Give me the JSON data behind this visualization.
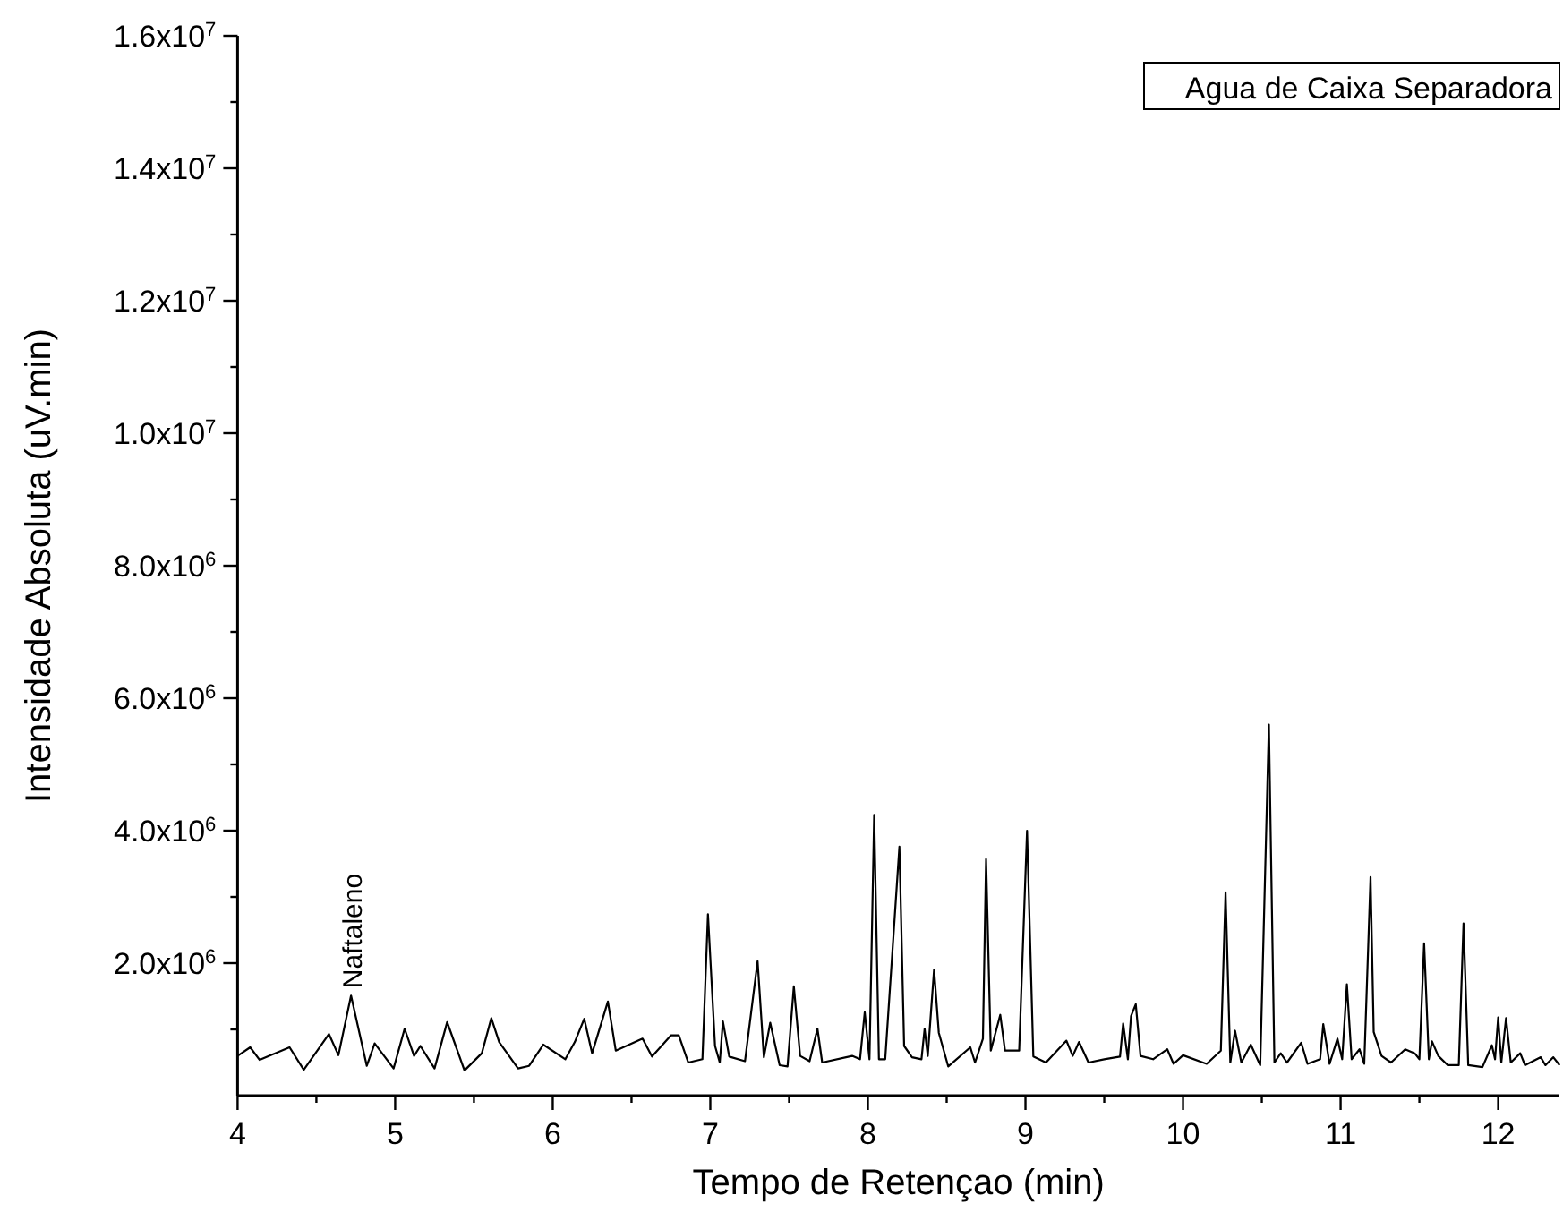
{
  "chart_data": {
    "type": "line",
    "xlabel": "Tempo de Retençao (min)",
    "ylabel": "Intensidade Absoluta (uV.min)",
    "xlim": [
      4,
      12.4
    ],
    "xticks": [
      4,
      {
        "value": 4.5,
        "label": null
      },
      5,
      {
        "value": 5.5,
        "label": null
      },
      6,
      {
        "value": 6.5,
        "label": null
      },
      7,
      {
        "value": 7.5,
        "label": null
      },
      8,
      {
        "value": 8.5,
        "label": null
      },
      9,
      {
        "value": 9.5,
        "label": null
      },
      10,
      {
        "value": 10.5,
        "label": null
      },
      11,
      {
        "value": 11.5,
        "label": null
      },
      12
    ],
    "ylim": [
      0,
      16000000
    ],
    "yticks": [
      {
        "value": 1000000,
        "label": null
      },
      {
        "value": 2000000,
        "label": "2.0x10$^{6}$"
      },
      {
        "value": 3000000,
        "label": null
      },
      {
        "value": 4000000,
        "label": "4.0x10$^{6}$"
      },
      {
        "value": 5000000,
        "label": null
      },
      {
        "value": 6000000,
        "label": "6.0x10$^{6}$"
      },
      {
        "value": 7000000,
        "label": null
      },
      {
        "value": 8000000,
        "label": "8.0x10$^{6}$"
      },
      {
        "value": 9000000,
        "label": null
      },
      {
        "value": 10000000,
        "label": "1.0x10$^{7}$"
      },
      {
        "value": 11000000,
        "label": null
      },
      {
        "value": 12000000,
        "label": "1.2x10$^{7}$"
      },
      {
        "value": 13000000,
        "label": null
      },
      {
        "value": 14000000,
        "label": "1.4x10$^{7}$"
      },
      {
        "value": 15000000,
        "label": null
      },
      {
        "value": 16000000,
        "label": "1.6x10$^{7}$"
      }
    ],
    "grid": false,
    "marker": "none",
    "line_style": "solid",
    "annotations": [
      {
        "text": "Naftaleno",
        "x": 4.72,
        "y": 1510000
      },
      "Agua de Caixa Separadora"
    ],
    "series": [
      {
        "color": "#000000",
        "x": [
          4.0,
          4.08,
          4.14,
          4.33,
          4.42,
          4.58,
          4.64,
          4.72,
          4.82,
          4.87,
          4.99,
          5.06,
          5.12,
          5.16,
          5.25,
          5.33,
          5.44,
          5.55,
          5.61,
          5.66,
          5.78,
          5.85,
          5.94,
          6.08,
          6.14,
          6.2,
          6.25,
          6.35,
          6.4,
          6.57,
          6.63,
          6.75,
          6.8,
          6.86,
          6.95,
          6.985,
          7.03,
          7.06,
          7.08,
          7.12,
          7.22,
          7.3,
          7.34,
          7.38,
          7.44,
          7.49,
          7.53,
          7.57,
          7.63,
          7.68,
          7.71,
          7.9,
          7.95,
          7.98,
          8.01,
          8.04,
          8.07,
          8.11,
          8.2,
          8.23,
          8.28,
          8.34,
          8.36,
          8.38,
          8.42,
          8.45,
          8.51,
          8.65,
          8.68,
          8.73,
          8.75,
          8.78,
          8.84,
          8.87,
          8.96,
          9.01,
          9.05,
          9.13,
          9.26,
          9.3,
          9.34,
          9.4,
          9.5,
          9.6,
          9.62,
          9.65,
          9.67,
          9.7,
          9.73,
          9.81,
          9.9,
          9.94,
          10.0,
          10.15,
          10.24,
          10.27,
          10.3,
          10.33,
          10.37,
          10.43,
          10.49,
          10.545,
          10.58,
          10.62,
          10.66,
          10.75,
          10.79,
          10.87,
          10.89,
          10.93,
          10.98,
          11.01,
          11.04,
          11.07,
          11.12,
          11.15,
          11.19,
          11.21,
          11.26,
          11.32,
          11.41,
          11.47,
          11.5,
          11.53,
          11.56,
          11.58,
          11.62,
          11.68,
          11.75,
          11.78,
          11.81,
          11.9,
          11.96,
          11.98,
          12.0,
          12.02,
          12.05,
          12.08,
          12.14,
          12.17,
          12.27,
          12.3,
          12.35,
          12.39
        ],
        "values": [
          600000,
          730000,
          540000,
          730000,
          390000,
          930000,
          610000,
          1510000,
          450000,
          790000,
          410000,
          1010000,
          600000,
          750000,
          410000,
          1110000,
          380000,
          640000,
          1170000,
          810000,
          410000,
          450000,
          770000,
          550000,
          810000,
          1160000,
          640000,
          1420000,
          680000,
          860000,
          590000,
          910000,
          910000,
          500000,
          550000,
          2740000,
          750000,
          500000,
          1120000,
          590000,
          520000,
          2030000,
          580000,
          1100000,
          460000,
          440000,
          1650000,
          600000,
          520000,
          1010000,
          500000,
          600000,
          550000,
          1260000,
          550000,
          4240000,
          550000,
          550000,
          3760000,
          750000,
          580000,
          550000,
          1010000,
          600000,
          1900000,
          950000,
          440000,
          730000,
          500000,
          860000,
          3570000,
          680000,
          1220000,
          680000,
          680000,
          4000000,
          590000,
          500000,
          830000,
          600000,
          810000,
          500000,
          550000,
          590000,
          1090000,
          550000,
          1200000,
          1380000,
          600000,
          550000,
          700000,
          480000,
          610000,
          480000,
          680000,
          3070000,
          500000,
          980000,
          500000,
          770000,
          460000,
          5600000,
          500000,
          640000,
          500000,
          800000,
          480000,
          550000,
          1080000,
          480000,
          860000,
          550000,
          1680000,
          550000,
          700000,
          480000,
          3300000,
          960000,
          600000,
          500000,
          700000,
          640000,
          550000,
          2300000,
          550000,
          820000,
          600000,
          460000,
          460000,
          2600000,
          460000,
          430000,
          760000,
          550000,
          1180000,
          500000,
          1170000,
          500000,
          640000,
          460000,
          580000,
          460000,
          580000,
          460000
        ]
      }
    ]
  }
}
